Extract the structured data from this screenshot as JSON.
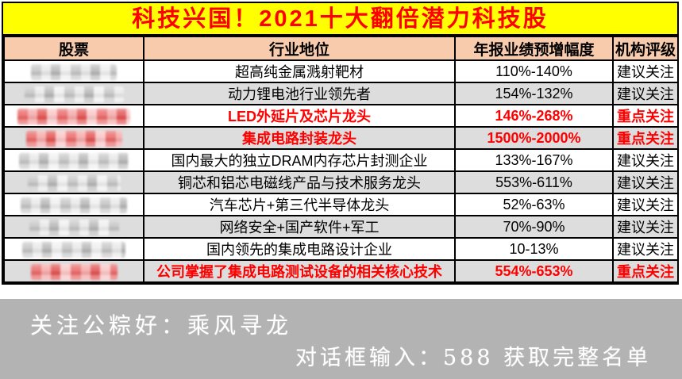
{
  "title": "科技兴国！2021十大翻倍潜力科技股",
  "table": {
    "headers": [
      "股票",
      "行业地位",
      "年报业绩预增幅度",
      "机构评级"
    ],
    "rows": [
      {
        "stock_redacted": true,
        "position": "超高纯金属溅射靶材",
        "growth": "110%-140%",
        "rating": "建议关注",
        "highlight": false
      },
      {
        "stock_redacted": true,
        "position": "动力锂电池行业领先者",
        "growth": "154%-132%",
        "rating": "建议关注",
        "highlight": false
      },
      {
        "stock_redacted": true,
        "position": "LED外延片及芯片龙头",
        "growth": "146%-268%",
        "rating": "重点关注",
        "highlight": true
      },
      {
        "stock_redacted": true,
        "position": "集成电路封装龙头",
        "growth": "1500%-2000%",
        "rating": "重点关注",
        "highlight": true
      },
      {
        "stock_redacted": true,
        "position": "国内最大的独立DRAM内存芯片封测企业",
        "growth": "133%-167%",
        "rating": "建议关注",
        "highlight": false
      },
      {
        "stock_redacted": true,
        "position": "铜芯和铝芯电磁线产品与技术服务龙头",
        "growth": "553%-611%",
        "rating": "建议关注",
        "highlight": false
      },
      {
        "stock_redacted": true,
        "position": "汽车芯片+第三代半导体龙头",
        "growth": "52%-63%",
        "rating": "建议关注",
        "highlight": false
      },
      {
        "stock_redacted": true,
        "position": "网络安全+国产软件+军工",
        "growth": "70%-90%",
        "rating": "建议关注",
        "highlight": false
      },
      {
        "stock_redacted": true,
        "position": "国内领先的集成电路设计企业",
        "growth": "10-13%",
        "rating": "建议关注",
        "highlight": false
      },
      {
        "stock_redacted": true,
        "position": "公司掌握了集成电路测试设备的相关核心技术",
        "growth": "554%-653%",
        "rating": "重点关注",
        "highlight": true
      }
    ]
  },
  "footer": {
    "line1": "关注公粽好：乘风寻龙",
    "line2": "对话框输入：588 获取完整名单"
  },
  "colors": {
    "title_bg": "#ffff00",
    "title_text": "#ff0000",
    "header_bg": "#f8cbad",
    "row_alt_bg": "#dddddd",
    "highlight_text": "#ff0000",
    "redact_gray": "#c6c6c6",
    "redact_red": "#ea6a6a",
    "footer_bg": "#b3b3b3",
    "footer_text": "#ffffff",
    "border": "#000000"
  }
}
